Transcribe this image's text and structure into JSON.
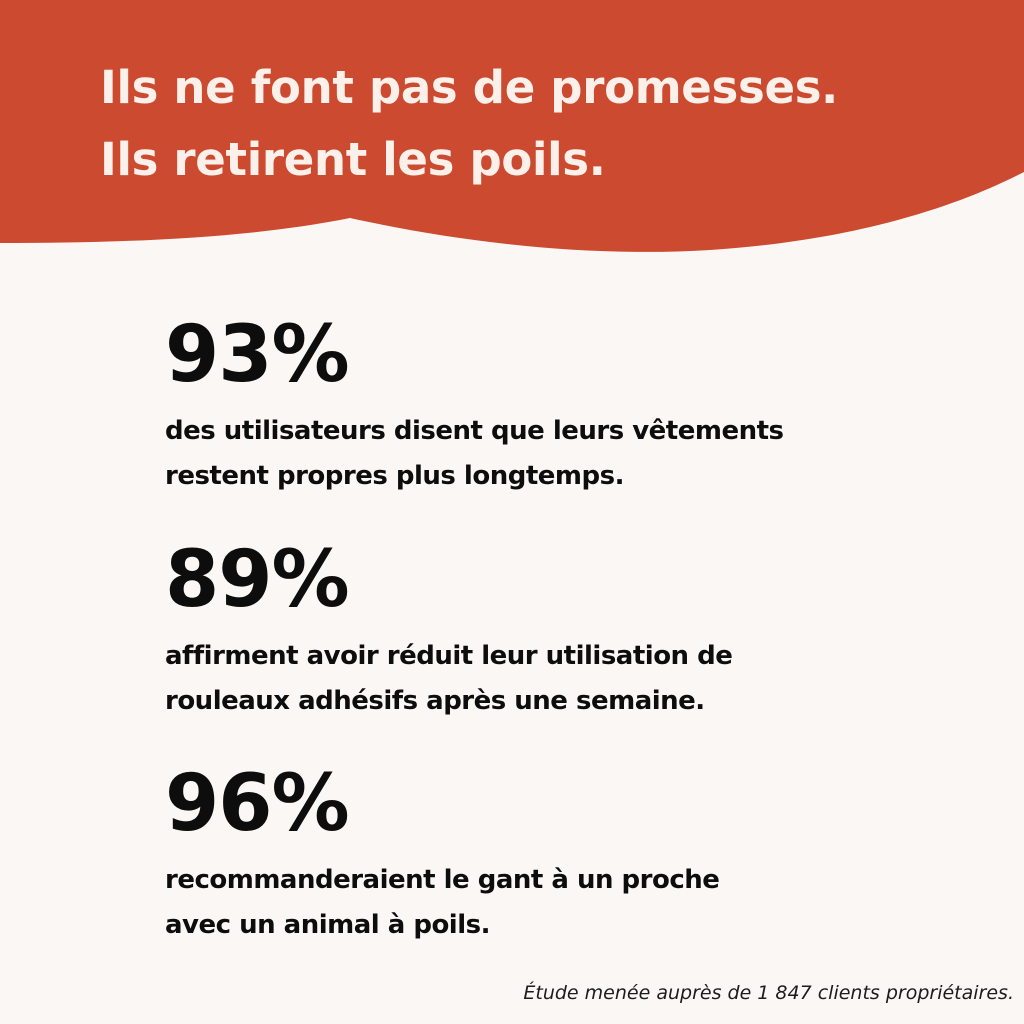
{
  "colors": {
    "header_background": "#cc4b30",
    "page_background": "#fbf7f4",
    "headline_text": "#fbf0ea",
    "body_text": "#0d0d0d"
  },
  "header": {
    "line1": "Ils ne font pas de promesses.",
    "line2": "Ils retirent les poils."
  },
  "stats": [
    {
      "value": "93%",
      "line1": "des utilisateurs disent que leurs vêtements",
      "line2": "restent propres plus longtemps."
    },
    {
      "value": "89%",
      "line1": "affirment avoir réduit leur utilisation de",
      "line2": "rouleaux adhésifs après une semaine."
    },
    {
      "value": "96%",
      "line1": "recommanderaient le gant à un proche",
      "line2": "avec un animal à poils."
    }
  ],
  "footnote": "Étude menée auprès de 1 847 clients propriétaires."
}
